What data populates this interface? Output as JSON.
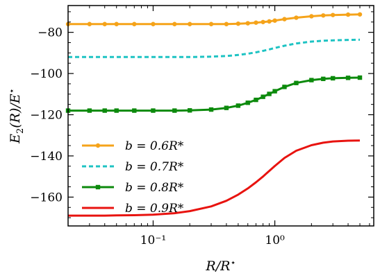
{
  "chart_data": {
    "type": "line",
    "xscale": "log",
    "xlim": [
      0.02,
      6.5
    ],
    "ylim": [
      -174,
      -67
    ],
    "xlabel": "R/R*",
    "ylabel": "E2(R)/E*",
    "xticks": [
      {
        "value": 0.1,
        "label": "10⁻¹"
      },
      {
        "value": 1,
        "label": "10⁰"
      }
    ],
    "yticks": [
      {
        "value": -80,
        "label": "−80"
      },
      {
        "value": -100,
        "label": "−100"
      },
      {
        "value": -120,
        "label": "−120"
      },
      {
        "value": -140,
        "label": "−140"
      },
      {
        "value": -160,
        "label": "−160"
      }
    ],
    "grid": false,
    "legend_position": "lower-left",
    "x": [
      0.02,
      0.03,
      0.04,
      0.05,
      0.07,
      0.1,
      0.15,
      0.2,
      0.3,
      0.4,
      0.5,
      0.6,
      0.7,
      0.8,
      0.9,
      1.0,
      1.2,
      1.5,
      2.0,
      2.5,
      3.0,
      4.0,
      5.0
    ],
    "series": [
      {
        "name": "b = 0.6R*",
        "color": "#f5a31a",
        "dash": "solid",
        "marker": "circle",
        "values": [
          -76,
          -76,
          -76,
          -76,
          -76,
          -76,
          -76,
          -76,
          -76,
          -76,
          -75.8,
          -75.6,
          -75.3,
          -75.0,
          -74.7,
          -74.3,
          -73.6,
          -72.9,
          -72.2,
          -71.8,
          -71.6,
          -71.4,
          -71.3
        ]
      },
      {
        "name": "b = 0.7R*",
        "color": "#1ec3c3",
        "dash": "dashed",
        "marker": "none",
        "values": [
          -92,
          -92,
          -92,
          -92,
          -92,
          -92,
          -92,
          -92,
          -91.8,
          -91.5,
          -91.0,
          -90.4,
          -89.7,
          -89.0,
          -88.3,
          -87.6,
          -86.5,
          -85.4,
          -84.5,
          -84.1,
          -83.9,
          -83.7,
          -83.6
        ]
      },
      {
        "name": "b = 0.8R*",
        "color": "#0c8a0c",
        "dash": "solid",
        "marker": "square",
        "values": [
          -118,
          -118,
          -118,
          -118,
          -118,
          -118,
          -118,
          -117.9,
          -117.5,
          -116.7,
          -115.6,
          -114.2,
          -112.8,
          -111.3,
          -109.9,
          -108.6,
          -106.5,
          -104.6,
          -103.2,
          -102.6,
          -102.3,
          -102.1,
          -102.0
        ]
      },
      {
        "name": "b = 0.9R*",
        "color": "#e8130f",
        "dash": "solid",
        "marker": "none",
        "values": [
          -169,
          -169,
          -169,
          -168.9,
          -168.8,
          -168.5,
          -167.8,
          -166.8,
          -164.5,
          -161.8,
          -158.8,
          -155.8,
          -152.8,
          -150.0,
          -147.3,
          -144.9,
          -141.0,
          -137.5,
          -134.8,
          -133.6,
          -133.0,
          -132.6,
          -132.5
        ]
      }
    ]
  }
}
